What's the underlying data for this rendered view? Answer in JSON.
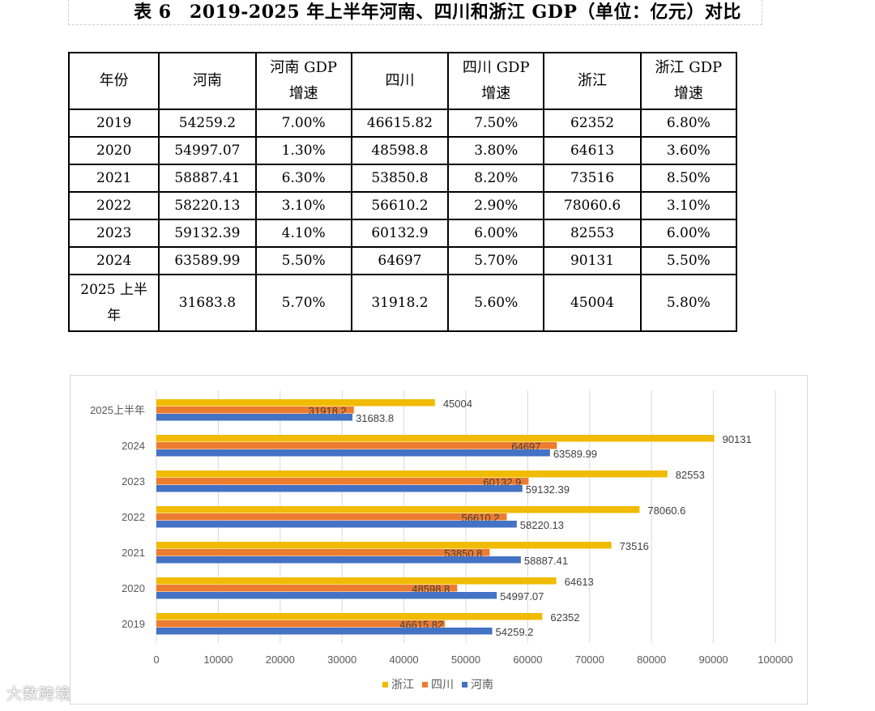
{
  "title": "表 6　2019-2025 年上半年河南、四川和浙江 GDP（单位：亿元）对比",
  "table": {
    "headers": [
      "年份",
      "河南",
      "河南 GDP 增速",
      "四川",
      "四川 GDP 增速",
      "浙江",
      "浙江 GDP 增速"
    ],
    "rows": [
      [
        "2019",
        "54259.2",
        "7.00%",
        "46615.82",
        "7.50%",
        "62352",
        "6.80%"
      ],
      [
        "2020",
        "54997.07",
        "1.30%",
        "48598.8",
        "3.80%",
        "64613",
        "3.60%"
      ],
      [
        "2021",
        "58887.41",
        "6.30%",
        "53850.8",
        "8.20%",
        "73516",
        "8.50%"
      ],
      [
        "2022",
        "58220.13",
        "3.10%",
        "56610.2",
        "2.90%",
        "78060.6",
        "3.10%"
      ],
      [
        "2023",
        "59132.39",
        "4.10%",
        "60132.9",
        "6.00%",
        "82553",
        "6.00%"
      ],
      [
        "2024",
        "63589.99",
        "5.50%",
        "64697",
        "5.70%",
        "90131",
        "5.50%"
      ],
      [
        "2025 上半年",
        "31683.8",
        "5.70%",
        "31918.2",
        "5.60%",
        "45004",
        "5.80%"
      ]
    ]
  },
  "chart_data": {
    "type": "bar",
    "orientation": "horizontal",
    "categories": [
      "2025上半年",
      "2024",
      "2023",
      "2022",
      "2021",
      "2020",
      "2019"
    ],
    "series": [
      {
        "name": "浙江",
        "color": "#f0bb00",
        "values": [
          45004,
          90131,
          82553,
          78060.6,
          73516,
          64613,
          62352
        ]
      },
      {
        "name": "四川",
        "color": "#ec7c30",
        "values": [
          31918.2,
          64697,
          60132.9,
          56610.2,
          53850.8,
          48598.8,
          46615.82
        ]
      },
      {
        "name": "河南",
        "color": "#4472c4",
        "values": [
          31683.8,
          63589.99,
          59132.39,
          58220.13,
          58887.41,
          54997.07,
          54259.2
        ]
      }
    ],
    "xlim": [
      0,
      100000
    ],
    "xticks": [
      0,
      10000,
      20000,
      30000,
      40000,
      50000,
      60000,
      70000,
      80000,
      90000,
      100000
    ],
    "grid": true,
    "legend": "bottom"
  },
  "watermark": "大数跨境"
}
